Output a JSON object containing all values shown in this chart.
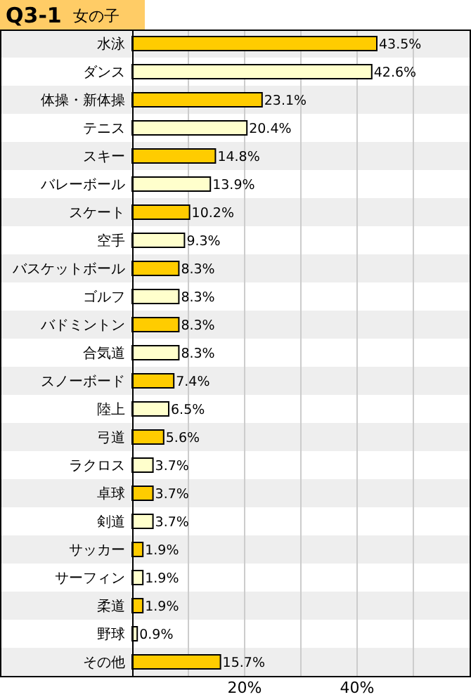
{
  "chart_data": {
    "type": "bar",
    "orientation": "horizontal",
    "title": "Q3-1",
    "subtitle": "女の子",
    "categories": [
      "水泳",
      "ダンス",
      "体操・新体操",
      "テニス",
      "スキー",
      "バレーボール",
      "スケート",
      "空手",
      "バスケットボール",
      "ゴルフ",
      "バドミントン",
      "合気道",
      "スノーボード",
      "陸上",
      "弓道",
      "ラクロス",
      "卓球",
      "剣道",
      "サッカー",
      "サーフィン",
      "柔道",
      "野球",
      "その他"
    ],
    "values": [
      43.5,
      42.6,
      23.1,
      20.4,
      14.8,
      13.9,
      10.2,
      9.3,
      8.3,
      8.3,
      8.3,
      8.3,
      7.4,
      6.5,
      5.6,
      3.7,
      3.7,
      3.7,
      1.9,
      1.9,
      1.9,
      0.9,
      15.7
    ],
    "colors": [
      "#ffcc00",
      "#ffffcc",
      "#ffcc00",
      "#ffffcc",
      "#ffcc00",
      "#ffffcc",
      "#ffcc00",
      "#ffffcc",
      "#ffcc00",
      "#ffffcc",
      "#ffcc00",
      "#ffffcc",
      "#ffcc00",
      "#ffffcc",
      "#ffcc00",
      "#ffffcc",
      "#ffcc00",
      "#ffffcc",
      "#ffcc00",
      "#ffffcc",
      "#ffcc00",
      "#ffffcc",
      "#ffcc00"
    ],
    "value_labels": [
      "43.5%",
      "42.6%",
      "23.1%",
      "20.4%",
      "14.8%",
      "13.9%",
      "10.2%",
      "9.3%",
      "8.3%",
      "8.3%",
      "8.3%",
      "8.3%",
      "7.4%",
      "6.5%",
      "5.6%",
      "3.7%",
      "3.7%",
      "3.7%",
      "1.9%",
      "1.9%",
      "1.9%",
      "0.9%",
      "15.7%"
    ],
    "xlim": [
      0,
      60
    ],
    "xticks": [
      {
        "value": 10,
        "label": null
      },
      {
        "value": 20,
        "label": "20%"
      },
      {
        "value": 30,
        "label": null
      },
      {
        "value": 40,
        "label": "40%"
      },
      {
        "value": 50,
        "label": null
      }
    ],
    "grid": "x"
  }
}
